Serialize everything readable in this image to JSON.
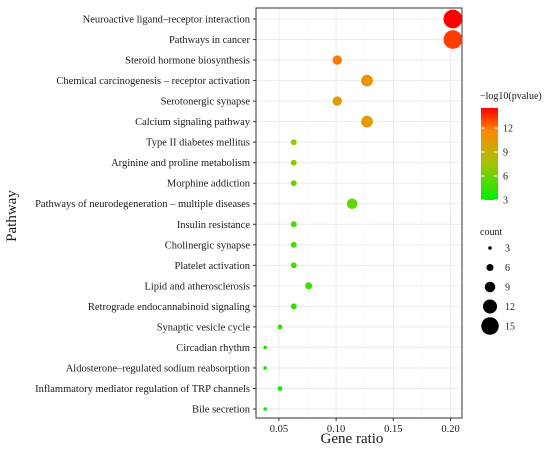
{
  "chart_data": {
    "type": "scatter",
    "xlabel": "Gene ratio",
    "ylabel": "Pathway",
    "xlim": [
      0.03,
      0.21
    ],
    "xticks": [
      "0.05",
      "0.10",
      "0.15",
      "0.20"
    ],
    "xtick_values": [
      0.05,
      0.1,
      0.15,
      0.2
    ],
    "grid": true,
    "legend_position": "right",
    "categories": [
      "Neuroactive ligand–receptor interaction",
      "Pathways in cancer",
      "Steroid hormone biosynthesis",
      "Chemical carcinogenesis – receptor activation",
      "Serotonergic synapse",
      "Calcium signaling pathway",
      "Type II diabetes mellitus",
      "Arginine and proline metabolism",
      "Morphine addiction",
      "Pathways of neurodegeneration – multiple diseases",
      "Insulin resistance",
      "Cholinergic synapse",
      "Platelet activation",
      "Lipid and atherosclerosis",
      "Retrograde endocannabinoid signaling",
      "Synaptic vesicle cycle",
      "Circadian rhythm",
      "Aldosterone–regulated sodium reabsorption",
      "Inflammatory mediator regulation of TRP channels",
      "Bile secretion"
    ],
    "points": [
      {
        "gene_ratio": 0.202,
        "count": 16,
        "neg_log10_pvalue": 14.5
      },
      {
        "gene_ratio": 0.202,
        "count": 16,
        "neg_log10_pvalue": 13.2
      },
      {
        "gene_ratio": 0.101,
        "count": 8,
        "neg_log10_pvalue": 12.0
      },
      {
        "gene_ratio": 0.127,
        "count": 10,
        "neg_log10_pvalue": 10.8
      },
      {
        "gene_ratio": 0.101,
        "count": 8,
        "neg_log10_pvalue": 10.2
      },
      {
        "gene_ratio": 0.127,
        "count": 10,
        "neg_log10_pvalue": 10.3
      },
      {
        "gene_ratio": 0.063,
        "count": 5,
        "neg_log10_pvalue": 7.0
      },
      {
        "gene_ratio": 0.063,
        "count": 5,
        "neg_log10_pvalue": 6.8
      },
      {
        "gene_ratio": 0.063,
        "count": 5,
        "neg_log10_pvalue": 6.1
      },
      {
        "gene_ratio": 0.114,
        "count": 9,
        "neg_log10_pvalue": 5.7
      },
      {
        "gene_ratio": 0.063,
        "count": 5,
        "neg_log10_pvalue": 5.2
      },
      {
        "gene_ratio": 0.063,
        "count": 5,
        "neg_log10_pvalue": 4.9
      },
      {
        "gene_ratio": 0.063,
        "count": 5,
        "neg_log10_pvalue": 4.8
      },
      {
        "gene_ratio": 0.076,
        "count": 6,
        "neg_log10_pvalue": 4.5
      },
      {
        "gene_ratio": 0.063,
        "count": 5,
        "neg_log10_pvalue": 4.4
      },
      {
        "gene_ratio": 0.051,
        "count": 4,
        "neg_log10_pvalue": 4.2
      },
      {
        "gene_ratio": 0.038,
        "count": 3,
        "neg_log10_pvalue": 3.9
      },
      {
        "gene_ratio": 0.038,
        "count": 3,
        "neg_log10_pvalue": 3.6
      },
      {
        "gene_ratio": 0.051,
        "count": 4,
        "neg_log10_pvalue": 3.5
      },
      {
        "gene_ratio": 0.038,
        "count": 3,
        "neg_log10_pvalue": 3.2
      }
    ],
    "color_legend": {
      "title": "−log10(pvalue)",
      "range": [
        3,
        14.5
      ],
      "ticks": [
        "3",
        "6",
        "9",
        "12"
      ],
      "tick_values": [
        3,
        6,
        9,
        12
      ],
      "colors": [
        "#00ee00",
        "#a6c300",
        "#ff8800",
        "#ff0000"
      ]
    },
    "size_legend": {
      "title": "count",
      "values": [
        3,
        6,
        9,
        12,
        15
      ],
      "labels": [
        "3",
        "6",
        "9",
        "12",
        "15"
      ]
    },
    "grid_color": "#ebebeb",
    "axis_color": "#333333"
  }
}
